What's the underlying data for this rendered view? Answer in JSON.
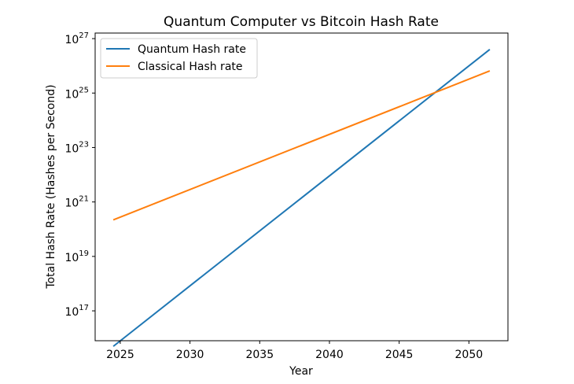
{
  "chart_data": {
    "type": "line",
    "title": "Quantum Computer vs Bitcoin Hash Rate",
    "xlabel": "Year",
    "ylabel": "Total Hash Rate (Hashes per Second)",
    "xlim": [
      2023.2,
      2052.8
    ],
    "ylim": [
      8000000000000000.0,
      1.6e+27
    ],
    "yscale": "log",
    "x_ticks": [
      2025,
      2030,
      2035,
      2040,
      2045,
      2050
    ],
    "y_ticks": [
      {
        "base": "10",
        "exp": "17",
        "value": 1e+17
      },
      {
        "base": "10",
        "exp": "19",
        "value": 1e+19
      },
      {
        "base": "10",
        "exp": "21",
        "value": 1e+21
      },
      {
        "base": "10",
        "exp": "23",
        "value": 1e+23
      },
      {
        "base": "10",
        "exp": "25",
        "value": 1e+25
      },
      {
        "base": "10",
        "exp": "27",
        "value": 1e+27
      }
    ],
    "grid": false,
    "legend_position": "upper-left",
    "series": [
      {
        "name": "Quantum Hash rate",
        "color": "#1f77b4",
        "x": [
          2024.5,
          2051.5
        ],
        "y": [
          5000000000000000.0,
          4e+26
        ]
      },
      {
        "name": "Classical Hash rate",
        "color": "#ff7f0e",
        "x": [
          2024.5,
          2051.5
        ],
        "y": [
          2.2e+20,
          6.5e+25
        ]
      }
    ]
  }
}
